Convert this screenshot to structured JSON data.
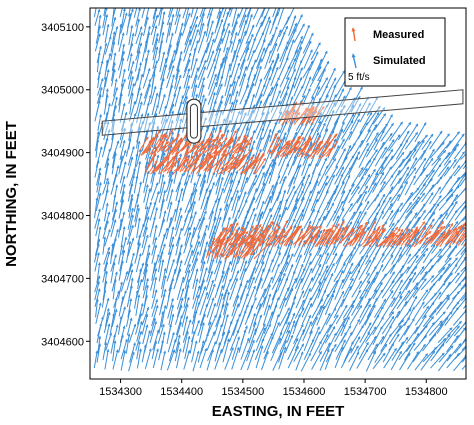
{
  "chart_data": {
    "type": "vector-field",
    "xlabel": "EASTING, IN FEET",
    "ylabel": "NORTHING, IN FEET",
    "xlim": [
      1534250,
      1534865
    ],
    "ylim": [
      3404540,
      3405130
    ],
    "xticks": [
      1534300,
      1534400,
      1534500,
      1534600,
      1534700,
      1534800
    ],
    "yticks": [
      3404600,
      3404700,
      3404800,
      3404900,
      3405000,
      3405100
    ],
    "xtick_labels": [
      "1534300",
      "1534400",
      "1534500",
      "1534600",
      "1534700",
      "1534800"
    ],
    "ytick_labels": [
      "3404600",
      "3404700",
      "3404800",
      "3404900",
      "3405000",
      "3405100"
    ],
    "legend": {
      "position": "top-right",
      "entries": [
        {
          "label": "Measured",
          "color": "#f06a3c"
        },
        {
          "label": "Simulated",
          "color": "#3a8fd8"
        }
      ],
      "scale_label": "5 ft/s"
    },
    "series": [
      {
        "name": "Simulated",
        "color": "#3a8fd8",
        "grid": {
          "x_start": 1534260,
          "x_end": 1534860,
          "y_start": 3404555,
          "y_end": 3405125,
          "dx": 13,
          "dy": 14
        },
        "domain_boundary": [
          [
            1534250,
            3405130
          ],
          [
            1534560,
            3405130
          ],
          [
            1534640,
            3405010
          ],
          [
            1534740,
            3404930
          ],
          [
            1534865,
            3404900
          ],
          [
            1534865,
            3404540
          ],
          [
            1534250,
            3404540
          ]
        ],
        "typical_velocity_ft_s": {
          "u": 1.4,
          "v": 3.6
        }
      },
      {
        "name": "Measured",
        "color": "#f06a3c",
        "transects": [
          {
            "x_range": [
              1534330,
              1534500
            ],
            "y": 3404900
          },
          {
            "x_range": [
              1534340,
              1534520
            ],
            "y": 3404870
          },
          {
            "x_range": [
              1534540,
              1534640
            ],
            "y": 3404895
          },
          {
            "x_range": [
              1534560,
              1534615
            ],
            "y": 3404947
          },
          {
            "x_range": [
              1534450,
              1534865
            ],
            "y": 3404755
          },
          {
            "x_range": [
              1534440,
              1534520
            ],
            "y": 3404735
          }
        ],
        "typical_velocity_ft_s": {
          "u": 1.9,
          "v": 2.6
        }
      }
    ],
    "annotations": [
      {
        "type": "structure",
        "shape": "long rectangular band",
        "from": [
          1534270,
          3404950
        ],
        "to": [
          1534860,
          3405000
        ]
      },
      {
        "type": "structure",
        "shape": "rounded pier",
        "center": [
          1534420,
          3404950
        ]
      }
    ]
  }
}
